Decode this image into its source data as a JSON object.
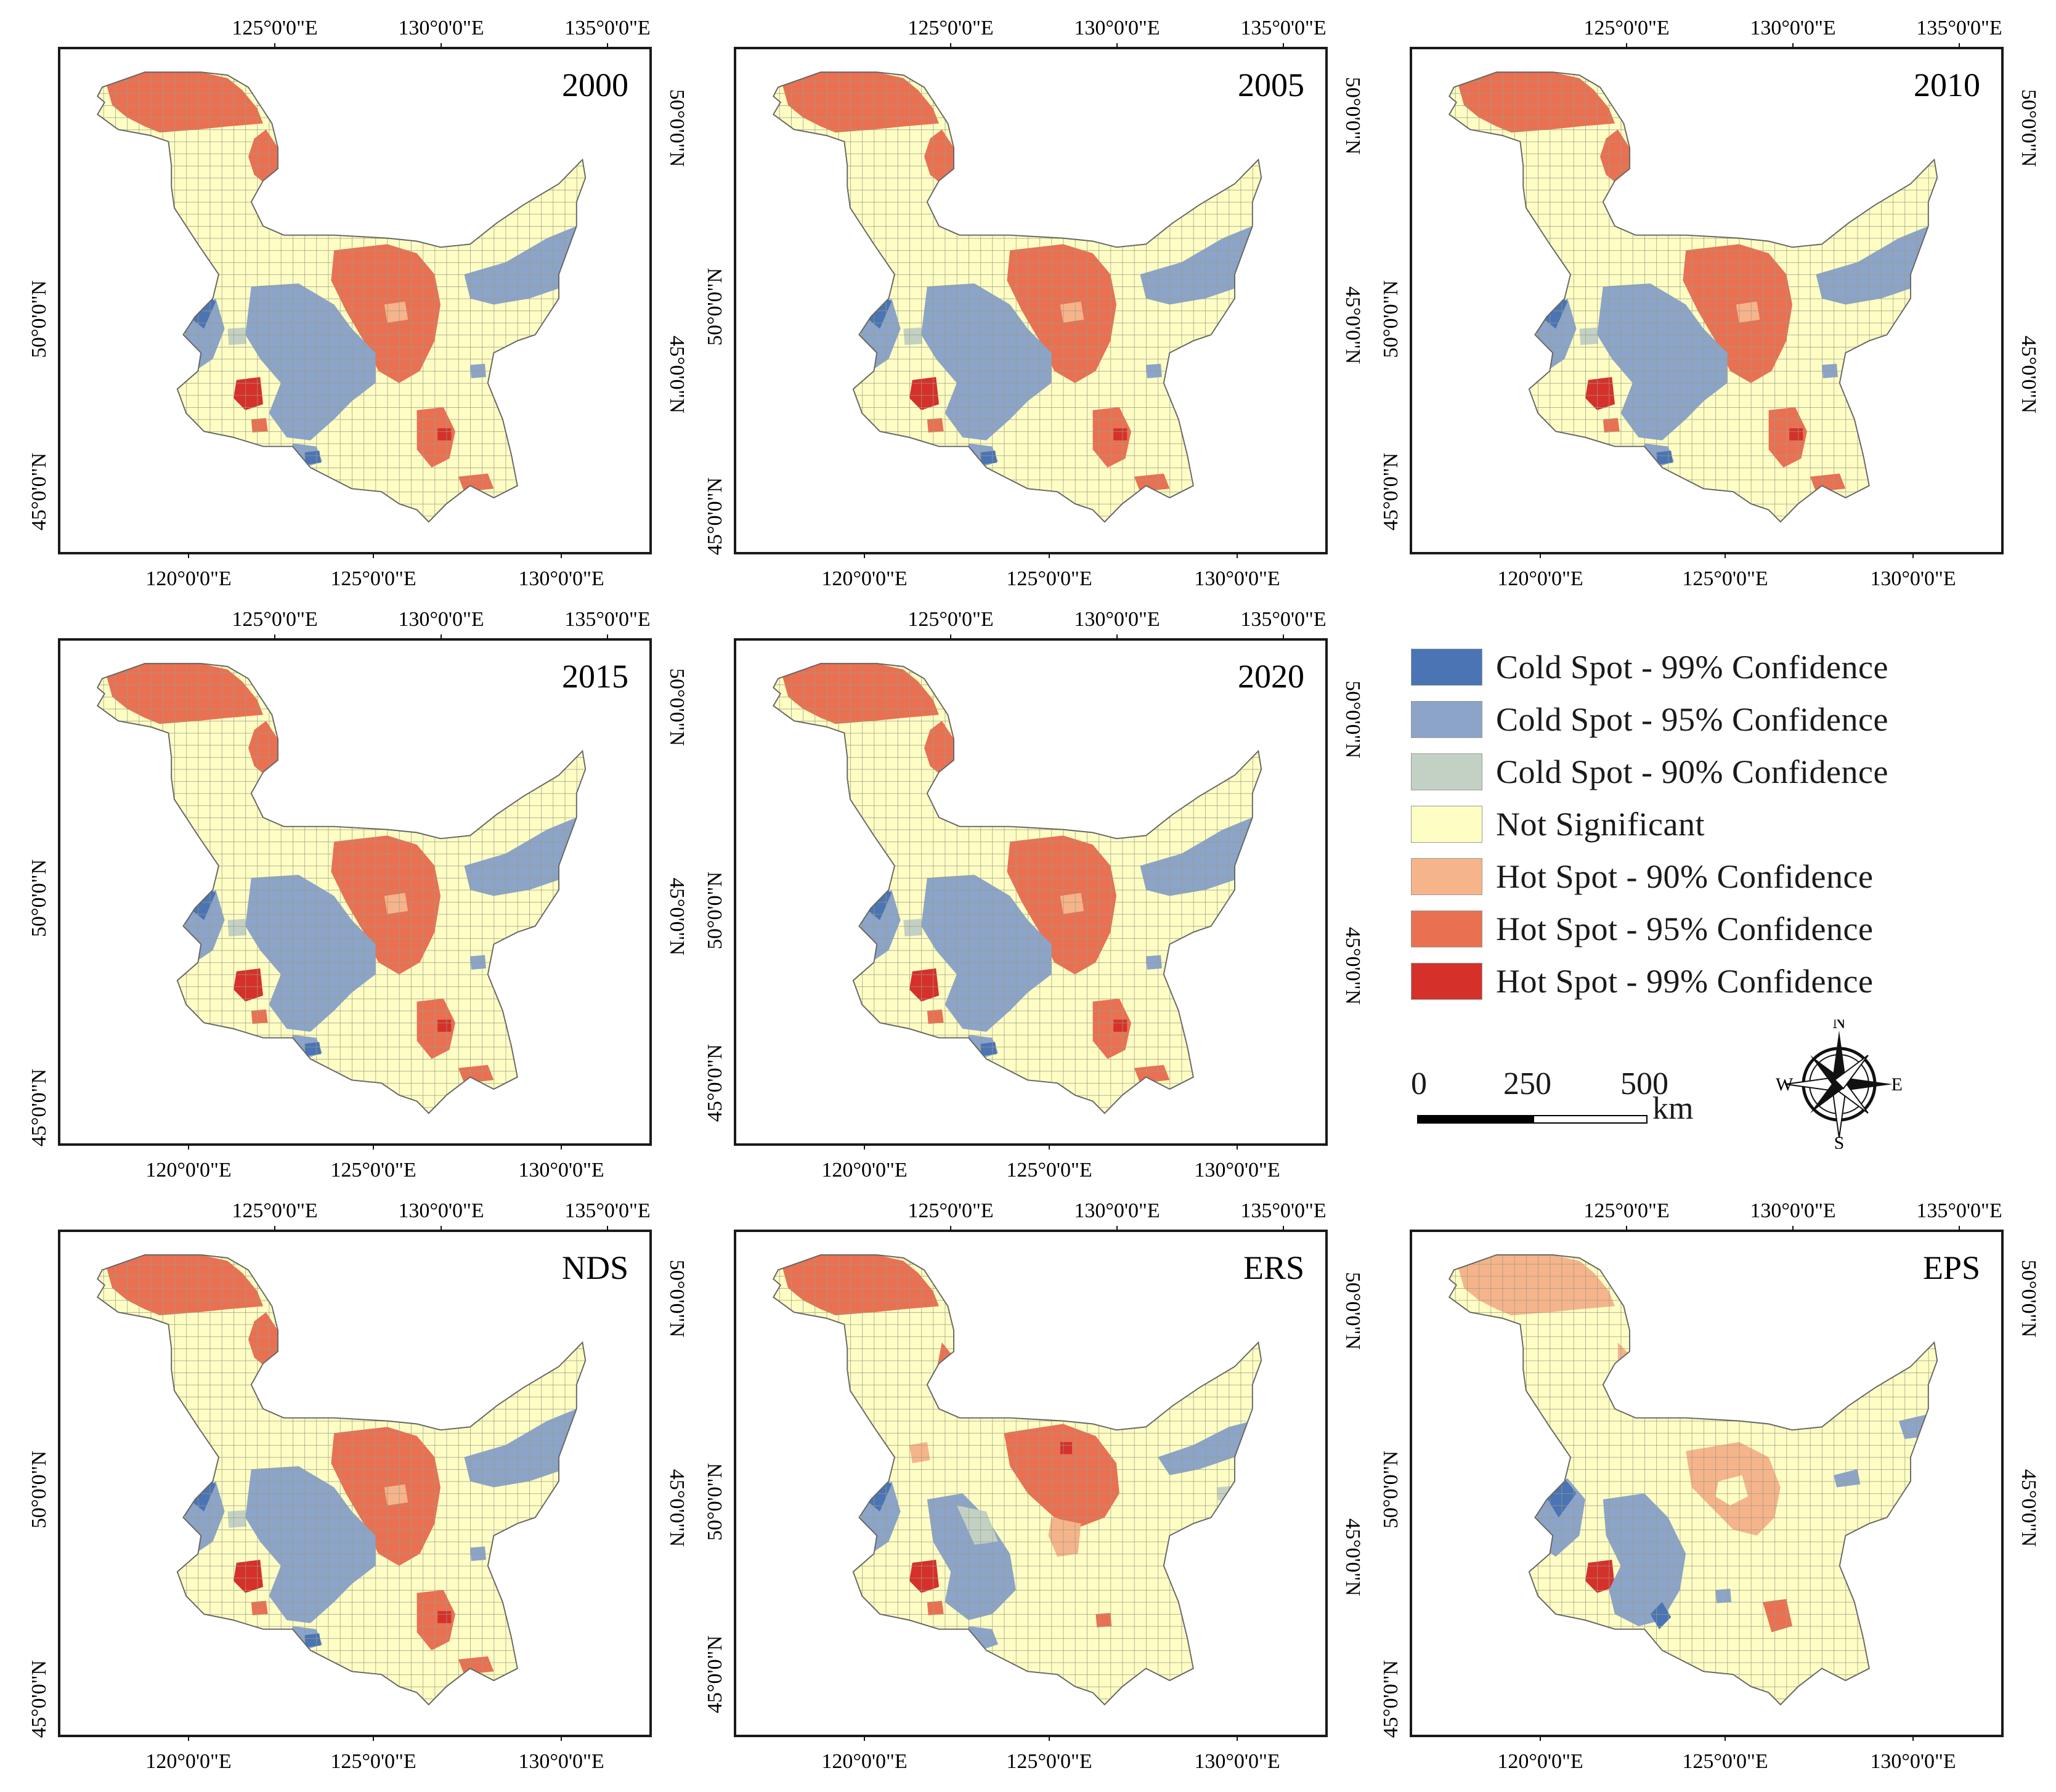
{
  "colors": {
    "cold99": "#4a74b4",
    "cold95": "#8ba4c8",
    "cold90": "#c3d1c4",
    "not_sig": "#fdfdc4",
    "hot90": "#f6b48a",
    "hot95": "#ea7052",
    "hot99": "#d6302a",
    "grid": "#9c9c84",
    "frame": "#1a1a1a"
  },
  "axis_labels": {
    "top": [
      "125°0'0\"E",
      "130°0'0\"E",
      "135°0'0\"E"
    ],
    "bottom": [
      "120°0'0\"E",
      "125°0'0\"E",
      "130°0'0\"E"
    ],
    "left": [
      "50°0'0\"N",
      "45°0'0\"N"
    ],
    "right": [
      "50°0'0\"N",
      "45°0'0\"N"
    ]
  },
  "panels": [
    {
      "title": "2000",
      "scheme": "standard"
    },
    {
      "title": "2005",
      "scheme": "standard"
    },
    {
      "title": "2010",
      "scheme": "standard"
    },
    {
      "title": "2015",
      "scheme": "standard"
    },
    {
      "title": "2020",
      "scheme": "standard"
    },
    {
      "title": "NDS",
      "scheme": "standard"
    },
    {
      "title": "ERS",
      "scheme": "ers"
    },
    {
      "title": "EPS",
      "scheme": "eps"
    }
  ],
  "legend": {
    "items": [
      {
        "label": "Cold Spot - 99% Confidence",
        "class": "cold99"
      },
      {
        "label": "Cold Spot - 95% Confidence",
        "class": "cold95"
      },
      {
        "label": "Cold Spot - 90% Confidence",
        "class": "cold90"
      },
      {
        "label": "Not Significant",
        "class": "not_sig"
      },
      {
        "label": "Hot Spot - 90% Confidence",
        "class": "hot90"
      },
      {
        "label": "Hot Spot - 95% Confidence",
        "class": "hot95"
      },
      {
        "label": "Hot Spot - 99% Confidence",
        "class": "hot99"
      }
    ]
  },
  "scale_bar": {
    "ticks": [
      "0",
      "250",
      "500"
    ],
    "unit": "km"
  },
  "compass": {
    "n": "N",
    "s": "S",
    "e": "E",
    "w": "W"
  }
}
